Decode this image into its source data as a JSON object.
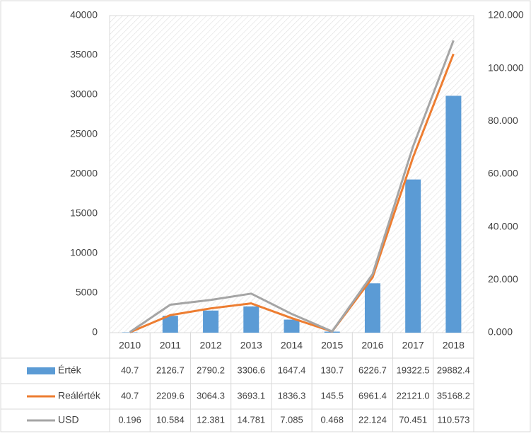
{
  "chart_data": {
    "type": "bar-line-table",
    "categories": [
      "2010",
      "2011",
      "2012",
      "2013",
      "2014",
      "2015",
      "2016",
      "2017",
      "2018"
    ],
    "series": [
      {
        "name": "Érték",
        "type": "bar",
        "color": "#5b9bd5",
        "values": [
          40.7,
          2126.7,
          2790.2,
          3306.6,
          1647.4,
          130.7,
          6226.7,
          19322.5,
          29882.4
        ]
      },
      {
        "name": "Reálérték",
        "type": "line",
        "color": "#ed7d31",
        "values": [
          40.7,
          2209.6,
          3064.3,
          3693.1,
          1836.3,
          145.5,
          6961.4,
          22121.0,
          35168.2
        ],
        "value_labels": [
          "40.7",
          "2209.6",
          "3064.3",
          "3693.1",
          "1836.3",
          "145.5",
          "6961.4",
          "22121.0",
          "35168.2"
        ]
      },
      {
        "name": "USD",
        "type": "line",
        "axis": "y2",
        "color": "#a5a5a5",
        "values": [
          0.196,
          10.584,
          12.381,
          14.781,
          7.085,
          0.468,
          22.124,
          70.451,
          110.573
        ]
      }
    ],
    "ylim": [
      0,
      40000
    ],
    "yticks": [
      0,
      5000,
      10000,
      15000,
      20000,
      25000,
      30000,
      35000,
      40000
    ],
    "y2lim": [
      0,
      120
    ],
    "y2ticks": [
      {
        "value": 0,
        "label": "0.000"
      },
      {
        "value": 20,
        "label": "20.000"
      },
      {
        "value": 40,
        "label": "40.000"
      },
      {
        "value": 60,
        "label": "60.000"
      },
      {
        "value": 80,
        "label": "80.000"
      },
      {
        "value": 100,
        "label": "100.000"
      },
      {
        "value": 120,
        "label": "120.000"
      }
    ],
    "grid": false
  }
}
